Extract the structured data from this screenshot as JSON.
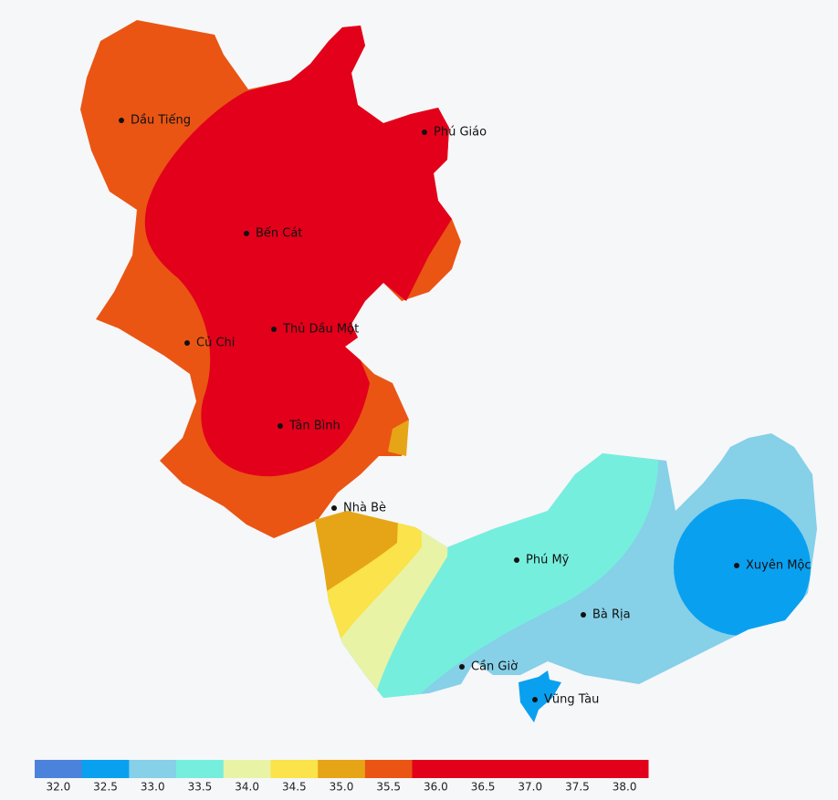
{
  "places": [
    {
      "name": "Dầu Tiếng"
    },
    {
      "name": "Phú Giáo"
    },
    {
      "name": "Bến Cát"
    },
    {
      "name": "Thủ Dầu Một"
    },
    {
      "name": "Củ Chi"
    },
    {
      "name": "Tân Bình"
    },
    {
      "name": "Nhà Bè"
    },
    {
      "name": "Phú Mỹ"
    },
    {
      "name": "Xuyên Mộc"
    },
    {
      "name": "Bà Rịa"
    },
    {
      "name": "Cần Giờ"
    },
    {
      "name": "Vũng Tàu"
    }
  ],
  "legend": {
    "bins": [
      {
        "value": 32.0,
        "label": "32.0",
        "color": "#4b83dc"
      },
      {
        "value": 32.5,
        "label": "32.5",
        "color": "#0aa0f0"
      },
      {
        "value": 33.0,
        "label": "33.0",
        "color": "#86d0e8"
      },
      {
        "value": 33.5,
        "label": "33.5",
        "color": "#76eedd"
      },
      {
        "value": 34.0,
        "label": "34.0",
        "color": "#e9f3a6"
      },
      {
        "value": 34.5,
        "label": "34.5",
        "color": "#fae34b"
      },
      {
        "value": 35.0,
        "label": "35.0",
        "color": "#e6a516"
      },
      {
        "value": 35.5,
        "label": "35.5",
        "color": "#ea5514"
      },
      {
        "value": 36.0,
        "label": "36.0",
        "color": "#e3001b"
      },
      {
        "value": 36.5,
        "label": "36.5",
        "color": "#e3001b"
      },
      {
        "value": 37.0,
        "label": "37.0",
        "color": "#e3001b"
      },
      {
        "value": 37.5,
        "label": "37.5",
        "color": "#e3001b"
      },
      {
        "value": 38.0,
        "label": "38.0",
        "color": "#e3001b"
      }
    ]
  }
}
